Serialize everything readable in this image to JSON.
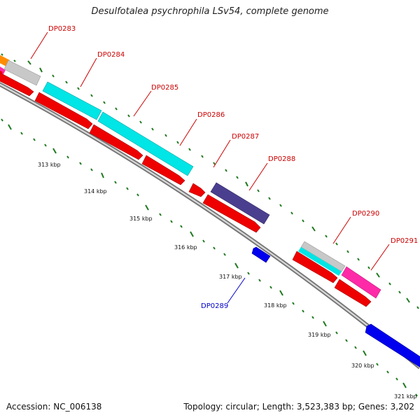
{
  "title": "Desulfotalea psychrophila LSv54, complete genome",
  "footer": {
    "accession": "Accession: NC_006138",
    "summary": "Topology: circular; Length: 3,523,383 bp; Genes: 3,202"
  },
  "colors": {
    "label_red": "#cc0000",
    "label_blue": "#0000cc",
    "backbone": "#888888",
    "tick_green": "#1e7a1e",
    "cds_red": "#ee0000",
    "cyan": "#00e5e5",
    "gray": "#c8c8c8",
    "navy": "#4a3f8f",
    "blue": "#0000ee",
    "magenta": "#ff2aa8",
    "orange": "#ff8c00"
  },
  "genes": [
    {
      "id": "DP0283",
      "strand": "forward"
    },
    {
      "id": "DP0284",
      "strand": "forward"
    },
    {
      "id": "DP0285",
      "strand": "forward"
    },
    {
      "id": "DP0286",
      "strand": "forward"
    },
    {
      "id": "DP0287",
      "strand": "forward"
    },
    {
      "id": "DP0288",
      "strand": "forward"
    },
    {
      "id": "DP0289",
      "strand": "reverse"
    },
    {
      "id": "DP0290",
      "strand": "forward"
    },
    {
      "id": "DP0291",
      "strand": "forward"
    }
  ],
  "scale_labels": [
    "313 kbp",
    "314 kbp",
    "315 kbp",
    "316 kbp",
    "317 kbp",
    "318 kbp",
    "319 kbp",
    "320 kbp",
    "321 kbp"
  ]
}
